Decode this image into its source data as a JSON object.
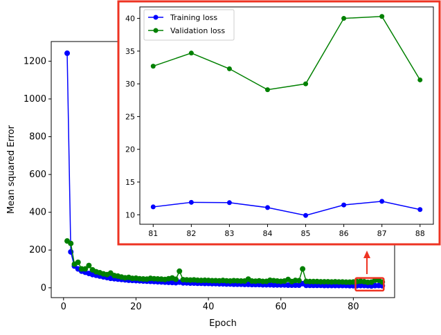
{
  "chart_data": [
    {
      "type": "line",
      "role": "main",
      "xlabel": "Epoch",
      "ylabel": "Mean squared Error",
      "xlim": [
        -3.4,
        91.4
      ],
      "ylim": [
        -52,
        1304
      ],
      "xticks": [
        0,
        20,
        40,
        60,
        80
      ],
      "yticks": [
        0,
        200,
        400,
        600,
        800,
        1000,
        1200
      ],
      "x": [
        1,
        2,
        3,
        4,
        5,
        6,
        7,
        8,
        9,
        10,
        11,
        12,
        13,
        14,
        15,
        16,
        17,
        18,
        19,
        20,
        21,
        22,
        23,
        24,
        25,
        26,
        27,
        28,
        29,
        30,
        31,
        32,
        33,
        34,
        35,
        36,
        37,
        38,
        39,
        40,
        41,
        42,
        43,
        44,
        45,
        46,
        47,
        48,
        49,
        50,
        51,
        52,
        53,
        54,
        55,
        56,
        57,
        58,
        59,
        60,
        61,
        62,
        63,
        64,
        65,
        66,
        67,
        68,
        69,
        70,
        71,
        72,
        73,
        74,
        75,
        76,
        77,
        78,
        79,
        80,
        81,
        82,
        83,
        84,
        85,
        86,
        87,
        88
      ],
      "series": [
        {
          "name": "Training loss",
          "color": "#0000ff",
          "values": [
            1242,
            190,
            115,
            100,
            88,
            82,
            76,
            70,
            66,
            62,
            58,
            54,
            50,
            48,
            46,
            44,
            42,
            40,
            39,
            38,
            37,
            36,
            35,
            34,
            33,
            32,
            31,
            30,
            29,
            28,
            27,
            30,
            26,
            26,
            25,
            25,
            24,
            24,
            23,
            23,
            22,
            22,
            21,
            21,
            20,
            20,
            19,
            19,
            19,
            18,
            18,
            17,
            17,
            17,
            16,
            16,
            16,
            15,
            15,
            15,
            15,
            14,
            14,
            14,
            14,
            22,
            13,
            13,
            13,
            13,
            13,
            12,
            12,
            12,
            12,
            12,
            12,
            12,
            11,
            11,
            11.2,
            11.9,
            11.85,
            11.1,
            9.9,
            11.5,
            12.05,
            10.8
          ]
        },
        {
          "name": "Validation loss",
          "color": "#008000",
          "values": [
            248,
            235,
            125,
            135,
            100,
            100,
            118,
            95,
            85,
            80,
            74,
            70,
            78,
            65,
            62,
            57,
            53,
            55,
            50,
            51,
            48,
            47,
            46,
            50,
            48,
            47,
            46,
            44,
            48,
            52,
            45,
            88,
            43,
            42,
            41,
            42,
            40,
            39,
            40,
            39,
            38,
            38,
            37,
            39,
            37,
            36,
            38,
            37,
            36,
            36,
            46,
            36,
            35,
            37,
            34,
            34,
            40,
            38,
            36,
            34,
            36,
            44,
            33,
            39,
            38,
            100,
            34,
            33,
            33,
            33,
            32,
            32,
            32,
            31,
            32,
            31,
            31,
            30,
            30,
            31,
            32.7,
            34.7,
            32.3,
            29.1,
            30.0,
            40.0,
            40.3,
            30.6
          ]
        }
      ],
      "highlight_box": {
        "xrange": [
          80.6,
          88.4
        ],
        "yrange": [
          -15,
          52
        ],
        "color": "#ee3322"
      }
    },
    {
      "type": "line",
      "role": "inset",
      "xlim": [
        80.65,
        88.35
      ],
      "ylim": [
        8.55,
        41.75
      ],
      "xticks": [
        81,
        82,
        83,
        84,
        85,
        86,
        87,
        88
      ],
      "yticks": [
        10,
        15,
        20,
        25,
        30,
        35,
        40
      ],
      "legend_position": "top-left",
      "x": [
        81,
        82,
        83,
        84,
        85,
        86,
        87,
        88
      ],
      "series": [
        {
          "name": "Training loss",
          "color": "#0000ff",
          "values": [
            11.2,
            11.9,
            11.85,
            11.1,
            9.9,
            11.5,
            12.05,
            10.8
          ]
        },
        {
          "name": "Validation loss",
          "color": "#008000",
          "values": [
            32.7,
            34.7,
            32.3,
            29.1,
            30.0,
            40.0,
            40.3,
            30.6
          ]
        }
      ],
      "frame_color": "#ee3322"
    }
  ]
}
